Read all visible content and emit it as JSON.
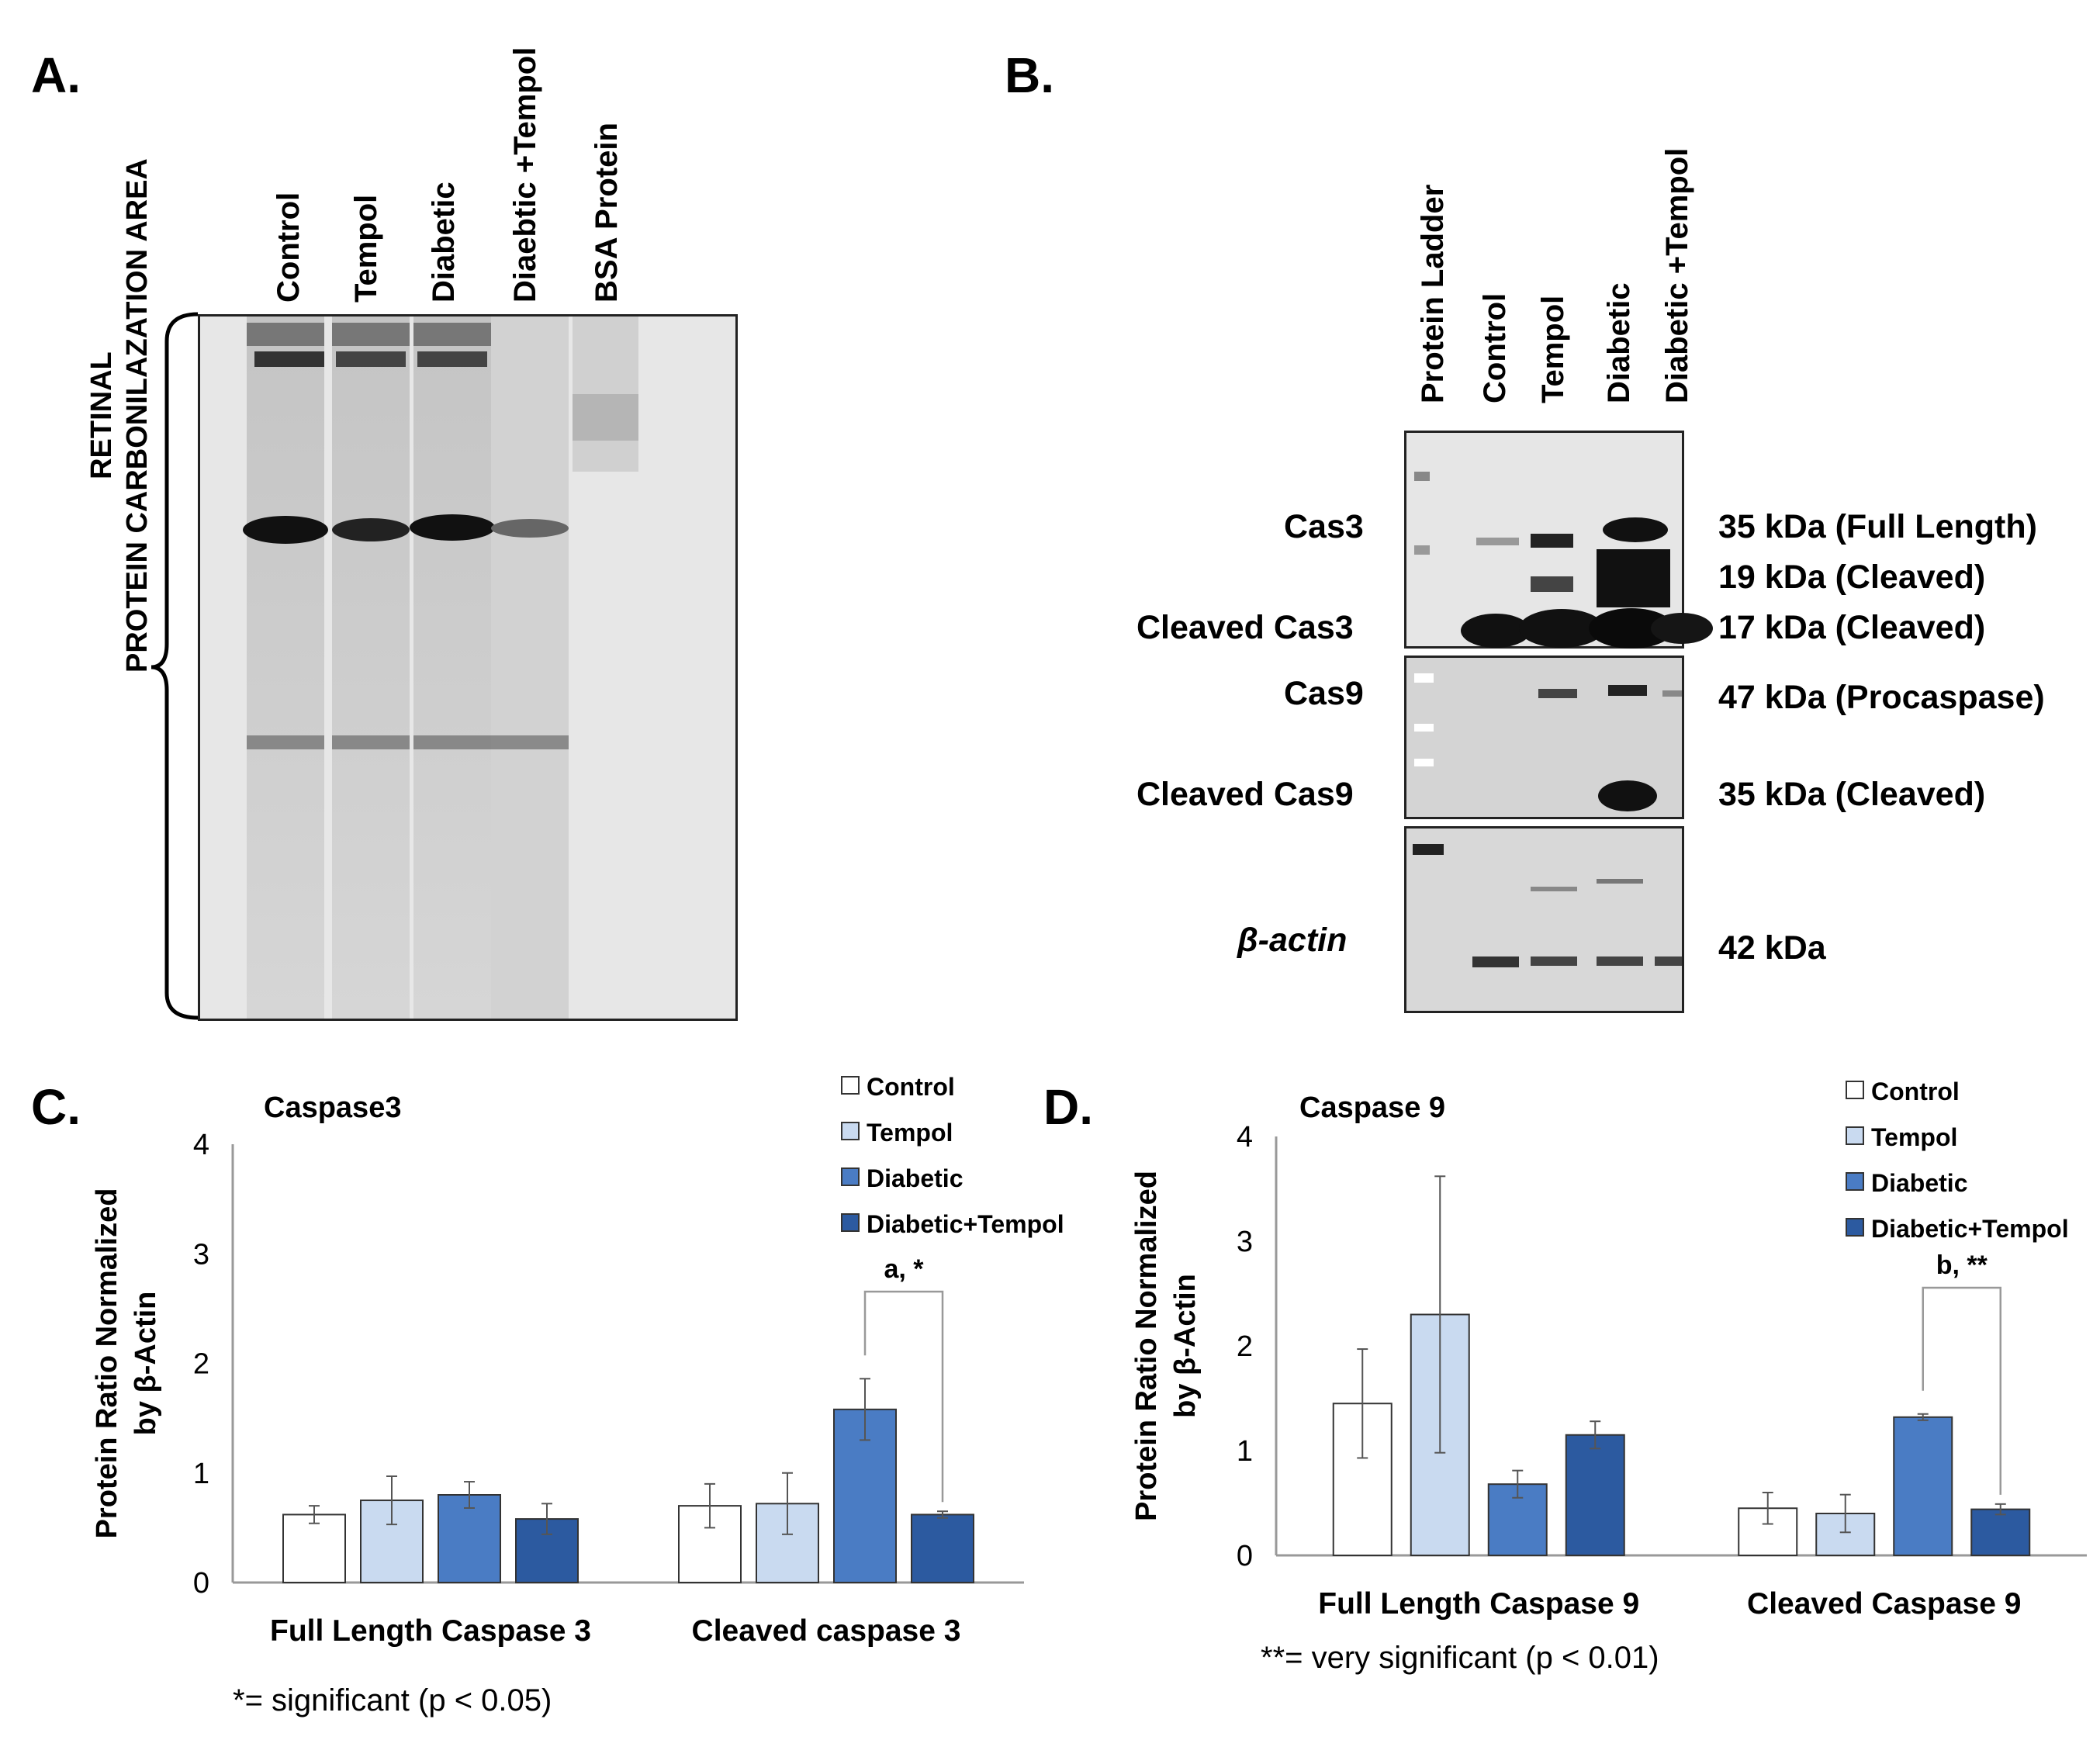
{
  "panels": {
    "a": {
      "label": "A.",
      "lanes": [
        "Control",
        "Tempol",
        "Diabetic",
        "Diaebtic +Tempol",
        "BSA Protein"
      ],
      "side_label_line1": "RETINAL",
      "side_label_line2": "PROTEIN CARBONILAZATION AREA"
    },
    "b": {
      "label": "B.",
      "lanes": [
        "Protein Ladder",
        "Control",
        "Tempol",
        "Diabetic",
        "Diabetic +Tempol"
      ],
      "row_labels": [
        "Cas3",
        "Cleaved Cas3",
        "Cas9",
        "Cleaved Cas9",
        "β-actin"
      ],
      "kda_labels": [
        "35 kDa (Full Length)",
        "19 kDa (Cleaved)",
        "17 kDa (Cleaved)",
        "47 kDa (Procaspase)",
        "35 kDa (Cleaved)",
        "42  kDa"
      ]
    },
    "c": {
      "label": "C.",
      "footnote": "*= significant (p < 0.05)"
    },
    "d": {
      "label": "D.",
      "footnote": "**= very significant (p < 0.01)"
    }
  },
  "chart_data": [
    {
      "type": "bar",
      "title": "Caspase3",
      "ylabel_line1": "Protein Ratio Normalized",
      "ylabel_line2": "by β-Actin",
      "ylim": [
        0,
        4
      ],
      "yticks": [
        "0",
        "1",
        "2",
        "3",
        "4"
      ],
      "categories": [
        "Full Length Caspase 3",
        "Cleaved caspase 3"
      ],
      "series": [
        {
          "name": "Control",
          "values": [
            0.62,
            0.7
          ],
          "errors": [
            0.08,
            0.2
          ],
          "color": "#ffffff"
        },
        {
          "name": "Tempol",
          "values": [
            0.75,
            0.72
          ],
          "errors": [
            0.22,
            0.28
          ],
          "color": "#c9daf0"
        },
        {
          "name": "Diabetic",
          "values": [
            0.8,
            1.58
          ],
          "errors": [
            0.12,
            0.28
          ],
          "color": "#4a7cc4"
        },
        {
          "name": "Diabetic+Tempol",
          "values": [
            0.58,
            0.62
          ],
          "errors": [
            0.14,
            0.03
          ],
          "color": "#2c5aa0"
        }
      ],
      "annotation": "a, *",
      "legend": "top-right"
    },
    {
      "type": "bar",
      "title": "Caspase 9",
      "ylabel_line1": "Protein Ratio Normalized",
      "ylabel_line2": "by β-Actin",
      "ylim": [
        0,
        4
      ],
      "yticks": [
        "0",
        "1",
        "2",
        "3",
        "4"
      ],
      "categories": [
        "Full Length Caspase 9",
        "Cleaved Caspase 9"
      ],
      "series": [
        {
          "name": "Control",
          "values": [
            1.45,
            0.45
          ],
          "errors": [
            0.52,
            0.15
          ],
          "color": "#ffffff"
        },
        {
          "name": "Tempol",
          "values": [
            2.3,
            0.4
          ],
          "errors": [
            1.32,
            0.18
          ],
          "color": "#c9daf0"
        },
        {
          "name": "Diabetic",
          "values": [
            0.68,
            1.32
          ],
          "errors": [
            0.13,
            0.03
          ],
          "color": "#4a7cc4"
        },
        {
          "name": "Diabetic+Tempol",
          "values": [
            1.15,
            0.44
          ],
          "errors": [
            0.13,
            0.05
          ],
          "color": "#2c5aa0"
        }
      ],
      "annotation": "b, **",
      "legend": "top-right"
    }
  ]
}
